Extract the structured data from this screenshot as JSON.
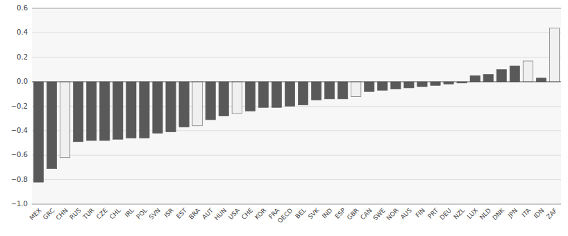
{
  "chart_data": {
    "type": "bar",
    "categories": [
      "MEX",
      "GRC",
      "CHN",
      "RUS",
      "TUR",
      "CZE",
      "CHL",
      "IRL",
      "POL",
      "SVN",
      "ISR",
      "EST",
      "BRA",
      "AUT",
      "HUN",
      "USA",
      "CHE",
      "KOR",
      "FRA",
      "OECD",
      "BEL",
      "SVK",
      "IND",
      "ESP",
      "GBR",
      "CAN",
      "SWE",
      "NOR",
      "AUS",
      "FIN",
      "PRT",
      "DEU",
      "NZL",
      "LUX",
      "NLD",
      "DNK",
      "JPN",
      "ITA",
      "IDN",
      "ZAF"
    ],
    "values": [
      -0.82,
      -0.71,
      -0.62,
      -0.49,
      -0.48,
      -0.48,
      -0.47,
      -0.46,
      -0.46,
      -0.42,
      -0.41,
      -0.37,
      -0.36,
      -0.31,
      -0.28,
      -0.26,
      -0.24,
      -0.21,
      -0.21,
      -0.2,
      -0.19,
      -0.15,
      -0.14,
      -0.14,
      -0.12,
      -0.08,
      -0.07,
      -0.06,
      -0.05,
      -0.04,
      -0.03,
      -0.02,
      -0.01,
      0.05,
      0.06,
      0.1,
      0.13,
      0.17,
      0.03,
      0.44
    ],
    "colors": [
      "#595959",
      "#595959",
      "#f0f0f0",
      "#595959",
      "#595959",
      "#595959",
      "#595959",
      "#595959",
      "#595959",
      "#595959",
      "#595959",
      "#595959",
      "#f0f0f0",
      "#595959",
      "#595959",
      "#f0f0f0",
      "#595959",
      "#595959",
      "#595959",
      "#595959",
      "#595959",
      "#595959",
      "#595959",
      "#595959",
      "#f0f0f0",
      "#595959",
      "#595959",
      "#595959",
      "#595959",
      "#595959",
      "#595959",
      "#595959",
      "#595959",
      "#595959",
      "#595959",
      "#595959",
      "#595959",
      "#f0f0f0",
      "#595959",
      "#f0f0f0"
    ],
    "ylim": [
      -1.0,
      0.6
    ],
    "yticks": [
      {
        "value": -1.0,
        "label": "−1.0"
      },
      {
        "value": -0.8,
        "label": "−0.8"
      },
      {
        "value": -0.6,
        "label": "−0.6"
      },
      {
        "value": -0.4,
        "label": "−0.4"
      },
      {
        "value": -0.2,
        "label": "−0.2"
      },
      {
        "value": 0.0,
        "label": "0.0"
      },
      {
        "value": 0.2,
        "label": "0.2"
      },
      {
        "value": 0.4,
        "label": "0.4"
      },
      {
        "value": 0.6,
        "label": "0.6"
      }
    ],
    "grid": true
  }
}
